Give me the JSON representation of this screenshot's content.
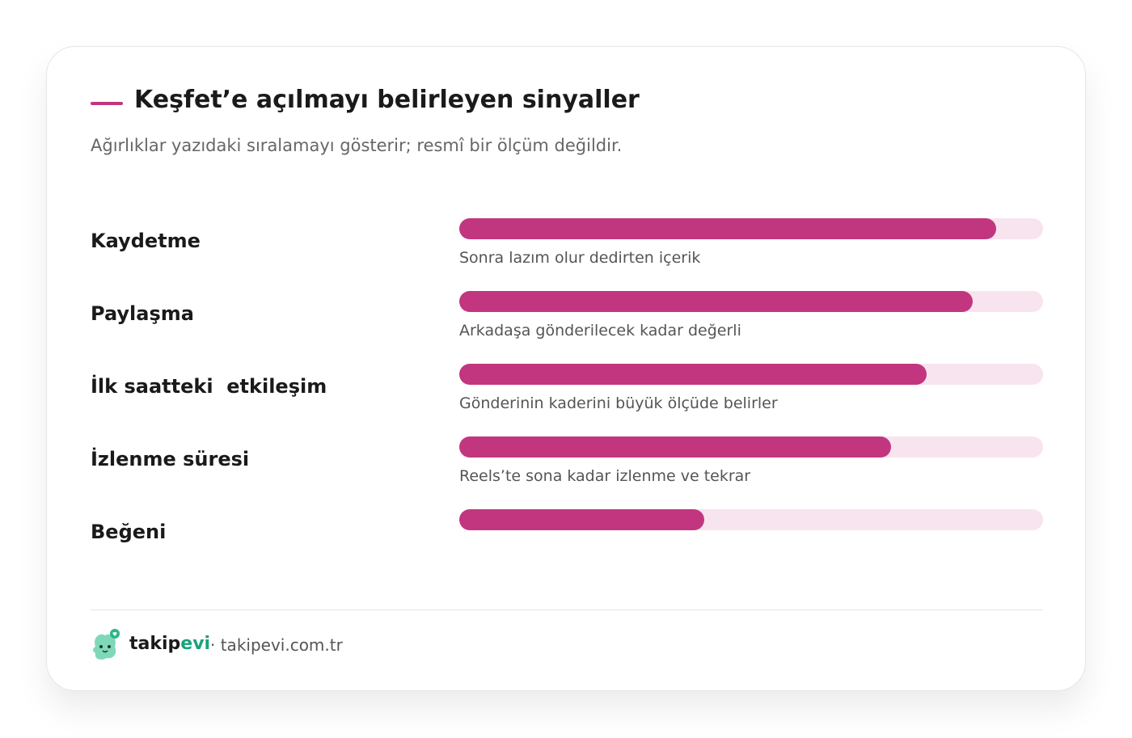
{
  "chart_data": {
    "type": "bar",
    "orientation": "horizontal",
    "title": "Keşfet’e açılmayı belirleyen sinyaller",
    "subtitle": "Ağırlıklar yazıdaki sıralamayı gösterir; resmî bir ölçüm değildir.",
    "categories": [
      "Kaydetme",
      "Paylaşma",
      "İlk saatteki  etkileşim",
      "İzlenme süresi",
      "Beğeni"
    ],
    "values": [
      92,
      88,
      80,
      74,
      42
    ],
    "annotations": [
      "Sonra lazım olur dedirten içerik",
      "Arkadaşa gönderilecek kadar değerli",
      "Gönderinin kaderini büyük ölçüde belirler",
      "Reels’te sona kadar izlenme ve tekrar",
      null
    ],
    "color": "#c2367f",
    "track_color": "#f7e4ef",
    "xlim": [
      0,
      100
    ]
  },
  "footer": {
    "brand_prefix": "takip",
    "brand_suffix": "evi",
    "site": "· takipevi.com.tr"
  }
}
